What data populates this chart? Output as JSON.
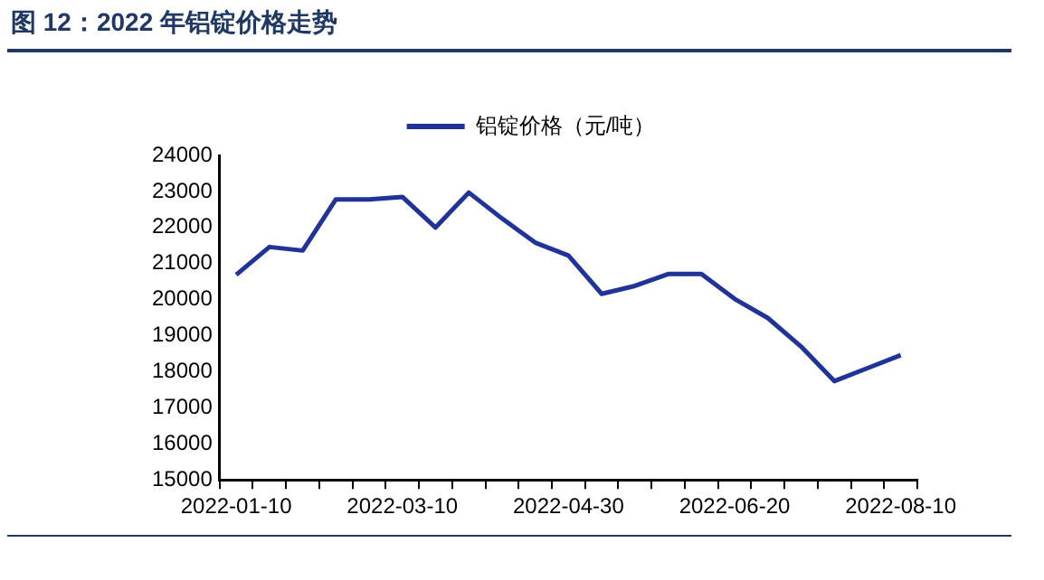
{
  "chart_data": {
    "type": "line",
    "title": "图 12：2022 年铝锭价格走势",
    "categories": [
      "2022-01-10",
      null,
      null,
      null,
      null,
      "2022-03-10",
      null,
      null,
      null,
      null,
      "2022-04-30",
      null,
      null,
      null,
      null,
      "2022-06-20",
      null,
      null,
      null,
      null,
      "2022-08-10"
    ],
    "series": [
      {
        "name": "铝锭价格（元/吨）",
        "color": "#1f3398",
        "values": [
          20690,
          21460,
          21360,
          22780,
          22780,
          22850,
          22000,
          22970,
          22250,
          21580,
          21220,
          20160,
          20380,
          20710,
          20710,
          20020,
          19490,
          18700,
          17740,
          18100,
          18460
        ]
      }
    ],
    "ylim": [
      15000,
      24000
    ],
    "yticks": [
      15000,
      16000,
      17000,
      18000,
      19000,
      20000,
      21000,
      22000,
      23000,
      24000
    ],
    "grid": false,
    "legend": "top",
    "marker": "none",
    "line_style": "solid"
  }
}
